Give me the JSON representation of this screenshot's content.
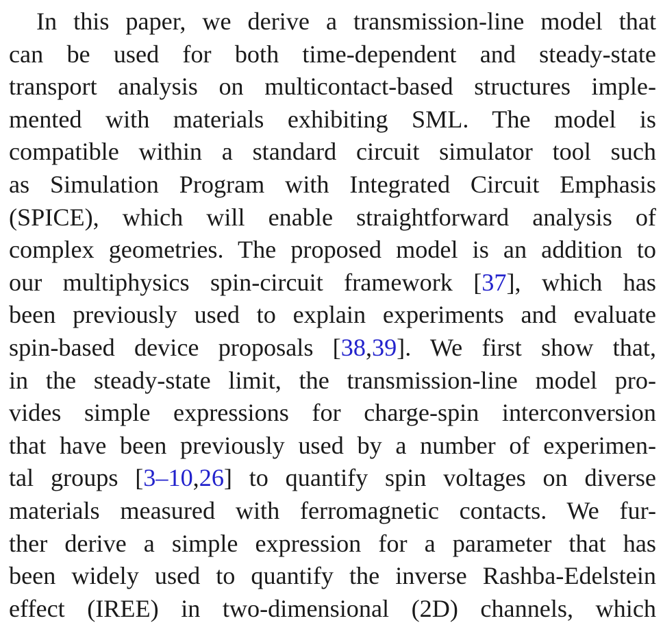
{
  "paragraph": {
    "lines": [
      [
        {
          "t": "In this paper, we derive a transmission-line model that"
        }
      ],
      [
        {
          "t": "can be used for both time-dependent and steady-state"
        }
      ],
      [
        {
          "t": "transport analysis on multicontact-based structures imple-"
        }
      ],
      [
        {
          "t": "mented with materials exhibiting SML. The model is"
        }
      ],
      [
        {
          "t": "compatible within a standard circuit simulator tool such"
        }
      ],
      [
        {
          "t": "as Simulation Program with Integrated Circuit Emphasis"
        }
      ],
      [
        {
          "t": "(SPICE), which will enable straightforward analysis of"
        }
      ],
      [
        {
          "t": "complex geometries. The proposed model is an addition to"
        }
      ],
      [
        {
          "t": "our multiphysics spin-circuit framework ["
        },
        {
          "t": "37",
          "cite": true
        },
        {
          "t": "], which has"
        }
      ],
      [
        {
          "t": "been previously used to explain experiments and evaluate"
        }
      ],
      [
        {
          "t": "spin-based device proposals ["
        },
        {
          "t": "38",
          "cite": true
        },
        {
          "t": ","
        },
        {
          "t": "39",
          "cite": true
        },
        {
          "t": "]. We first show that,"
        }
      ],
      [
        {
          "t": "in the steady-state limit, the transmission-line model pro-"
        }
      ],
      [
        {
          "t": "vides simple expressions for charge-spin interconversion"
        }
      ],
      [
        {
          "t": "that have been previously used by a number of experimen-"
        }
      ],
      [
        {
          "t": "tal groups ["
        },
        {
          "t": "3–10",
          "cite": true
        },
        {
          "t": ","
        },
        {
          "t": "26",
          "cite": true
        },
        {
          "t": "] to quantify spin voltages on diverse"
        }
      ],
      [
        {
          "t": "materials measured with ferromagnetic contacts. We fur-"
        }
      ],
      [
        {
          "t": "ther derive a simple expression for a parameter that has"
        }
      ],
      [
        {
          "t": "been widely used to quantify the inverse Rashba-Edelstein"
        }
      ],
      [
        {
          "t": "effect (IREE) in two-dimensional (2D) channels, which"
        }
      ]
    ]
  },
  "colors": {
    "text": "#1a1a1a",
    "citation_link": "#2222cc"
  }
}
